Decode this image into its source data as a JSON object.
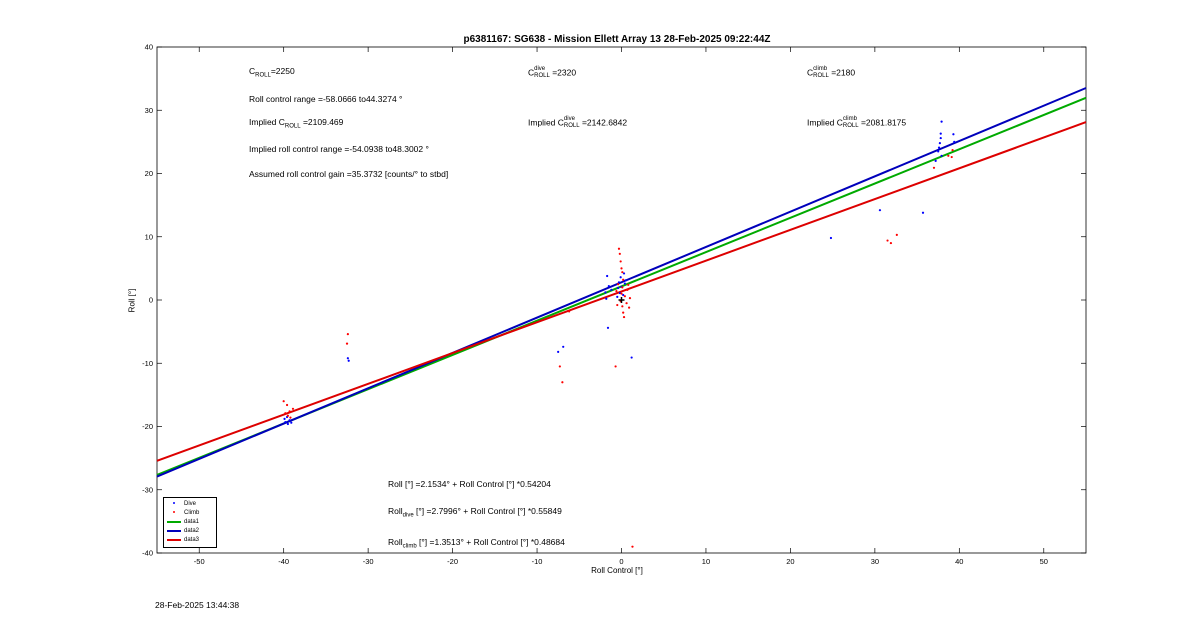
{
  "chart_data": {
    "type": "scatter",
    "title": "p6381167: SG638 - Mission Ellett Array 13 28-Feb-2025 09:22:44Z",
    "xlabel": "Roll Control [°]",
    "ylabel": "Roll [°]",
    "xlim": [
      -55,
      55
    ],
    "ylim": [
      -40,
      40
    ],
    "xticks": [
      -50,
      -40,
      -30,
      -20,
      -10,
      0,
      10,
      20,
      30,
      40,
      50
    ],
    "yticks": [
      -40,
      -30,
      -20,
      -10,
      0,
      10,
      20,
      30,
      40
    ],
    "grid": false,
    "legend_placement": "bottom-left",
    "legend": [
      {
        "label": "Dive",
        "kind": "marker",
        "color": "#0000ff"
      },
      {
        "label": "Climb",
        "kind": "marker",
        "color": "#ff0000"
      },
      {
        "label": "data1",
        "kind": "line",
        "color": "#00aa00"
      },
      {
        "label": "data2",
        "kind": "line",
        "color": "#0000bb"
      },
      {
        "label": "data3",
        "kind": "line",
        "color": "#dd0000"
      }
    ],
    "series": [
      {
        "name": "Dive",
        "type": "scatter",
        "color": "#0000ff",
        "points": [
          [
            -39.8,
            -19.3
          ],
          [
            -39.5,
            -19.6
          ],
          [
            -39.3,
            -19.0
          ],
          [
            -39.9,
            -18.8
          ],
          [
            -39.1,
            -19.4
          ],
          [
            -39.6,
            -18.5
          ],
          [
            -32.4,
            -9.2
          ],
          [
            -32.3,
            -9.6
          ],
          [
            -7.5,
            -8.2
          ],
          [
            -6.9,
            -7.4
          ],
          [
            -1.6,
            -4.4
          ],
          [
            1.2,
            -9.1
          ],
          [
            -1.9,
            1.2
          ],
          [
            -1.7,
            3.8
          ],
          [
            -1.8,
            0.2
          ],
          [
            -1.5,
            2.2
          ],
          [
            -1.2,
            1.6
          ],
          [
            -0.5,
            0.5
          ],
          [
            -0.3,
            2.8
          ],
          [
            -0.2,
            1.1
          ],
          [
            -0.1,
            3.6
          ],
          [
            0.0,
            2.1
          ],
          [
            0.2,
            0.8
          ],
          [
            0.3,
            4.2
          ],
          [
            0.4,
            2.6
          ],
          [
            -0.4,
            1.9
          ],
          [
            0.5,
            3.1
          ],
          [
            24.8,
            9.8
          ],
          [
            30.6,
            14.2
          ],
          [
            35.7,
            13.8
          ],
          [
            37.2,
            22.0
          ],
          [
            37.5,
            23.5
          ],
          [
            37.6,
            24.1
          ],
          [
            37.7,
            24.8
          ],
          [
            37.8,
            25.6
          ],
          [
            37.8,
            26.3
          ],
          [
            37.9,
            28.2
          ],
          [
            37.9,
            22.8
          ],
          [
            39.4,
            25.0
          ],
          [
            39.3,
            26.2
          ]
        ]
      },
      {
        "name": "Climb",
        "type": "scatter",
        "color": "#ff0000",
        "points": [
          [
            -40.0,
            -16.0
          ],
          [
            -39.6,
            -16.6
          ],
          [
            -39.3,
            -17.6
          ],
          [
            -39.5,
            -18.3
          ],
          [
            -39.8,
            -17.9
          ],
          [
            -38.9,
            -17.2
          ],
          [
            -39.2,
            -18.6
          ],
          [
            -32.4,
            -5.4
          ],
          [
            -32.5,
            -6.9
          ],
          [
            -7.3,
            -10.5
          ],
          [
            -7.0,
            -13.0
          ],
          [
            -6.2,
            -1.8
          ],
          [
            -0.7,
            -10.5
          ],
          [
            -0.3,
            8.1
          ],
          [
            -0.2,
            7.3
          ],
          [
            -0.1,
            6.1
          ],
          [
            0.0,
            5.0
          ],
          [
            0.1,
            4.4
          ],
          [
            0.2,
            3.2
          ],
          [
            0.1,
            2.0
          ],
          [
            0.0,
            1.0
          ],
          [
            -0.1,
            -0.2
          ],
          [
            0.1,
            -1.0
          ],
          [
            0.2,
            -2.0
          ],
          [
            0.3,
            -2.7
          ],
          [
            0.4,
            0.6
          ],
          [
            0.6,
            -0.5
          ],
          [
            0.7,
            1.6
          ],
          [
            0.8,
            2.4
          ],
          [
            0.9,
            -1.2
          ],
          [
            1.0,
            0.3
          ],
          [
            -0.5,
            -0.8
          ],
          [
            -0.6,
            1.4
          ],
          [
            -0.4,
            2.5
          ],
          [
            1.3,
            -39.0
          ],
          [
            31.5,
            9.4
          ],
          [
            31.9,
            9.0
          ],
          [
            32.6,
            10.3
          ],
          [
            37.0,
            20.9
          ],
          [
            38.7,
            22.8
          ],
          [
            39.2,
            23.7
          ],
          [
            39.1,
            22.6
          ]
        ]
      },
      {
        "name": "",
        "type": "line",
        "color": "#00aa00",
        "slope": 0.54204,
        "intercept": 2.1534
      },
      {
        "name": "",
        "type": "line",
        "color": "#0000bb",
        "slope": 0.55849,
        "intercept": 2.7996
      },
      {
        "name": "",
        "type": "line",
        "color": "#dd0000",
        "slope": 0.48684,
        "intercept": 1.3513
      }
    ],
    "zero_marker": {
      "x": 0,
      "y": 0
    }
  },
  "annotations": {
    "c_roll": {
      "base": "C",
      "sub": "ROLL",
      "value": "=2250"
    },
    "roll_range": "Roll control range =-58.0666 to44.3274 °",
    "implied_c_roll": {
      "prefix": "Implied C",
      "sub": "ROLL",
      "value": " =2109.469"
    },
    "implied_range": "Implied roll control range =-54.0938 to48.3002 °",
    "gain": "Assumed roll control gain =35.3732 [counts/° to stbd]",
    "c_dive": {
      "base": "C",
      "sup": "dive",
      "sub": "ROLL",
      "value": " =2320"
    },
    "implied_c_dive": {
      "prefix": "Implied C",
      "sup": "dive",
      "sub": "ROLL",
      "value": " =2142.6842"
    },
    "c_climb": {
      "base": "C",
      "sup": "climb",
      "sub": "ROLL",
      "value": " =2180"
    },
    "implied_c_climb": {
      "prefix": "Implied C",
      "sup": "climb",
      "sub": "ROLL",
      "value": " =2081.8175"
    },
    "fit_all": "Roll [°] =2.1534° + Roll Control [°] *0.54204",
    "fit_dive": {
      "prefix": "Roll",
      "sub": "dive",
      "rest": " [°] =2.7996° + Roll Control [°] *0.55849"
    },
    "fit_climb": {
      "prefix": "Roll",
      "sub": "climb",
      "rest": " [°] =1.3513° + Roll Control [°] *0.48684"
    }
  },
  "timestamp": "28-Feb-2025 13:44:38"
}
